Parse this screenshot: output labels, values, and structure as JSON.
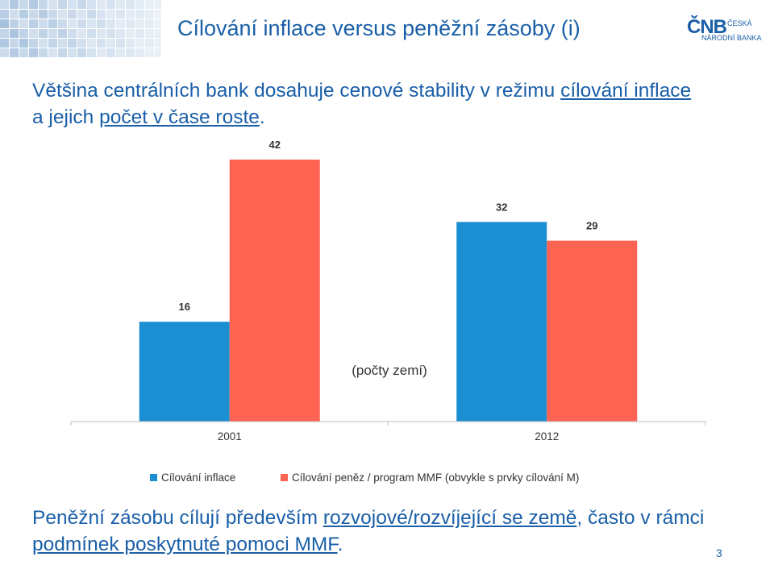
{
  "header": {
    "title": "Cílování inflace versus peněžní zásoby (i)",
    "logo_mark": "ČNB",
    "logo_line1": "ČESKÁ",
    "logo_line2": "NÁRODNÍ BANKA"
  },
  "intro": {
    "part1": "Většina centrálních bank dosahuje cenové stability v režimu ",
    "link1": "cílování inflace",
    "part2": "a jejich ",
    "link2": "počet v čase roste",
    "part3": "."
  },
  "bottom": {
    "part1": "Peněžní zásobu cílují především ",
    "link1": "rozvojové/rozvíjející se země",
    "part2": ", často v rámci ",
    "link2": "podmínek poskytnuté pomoci MMF",
    "part3": "."
  },
  "page_number": "3",
  "colors": {
    "accent": "#1a5fa8",
    "series1": "#1b8fd2",
    "series2": "#ff6352"
  },
  "chart_data": {
    "type": "bar",
    "categories": [
      "2001",
      "2012"
    ],
    "series": [
      {
        "name": "Cílování inflace",
        "values": [
          16,
          32
        ],
        "color": "#1b8fd2"
      },
      {
        "name": "Cílování peněz / program MMF (obvykle s prvky cílování M)",
        "values": [
          42,
          29
        ],
        "color": "#ff6352"
      }
    ],
    "annotation": "(počty zemí)",
    "ylim": [
      0,
      42
    ],
    "legend": "bottom",
    "grid": false
  }
}
